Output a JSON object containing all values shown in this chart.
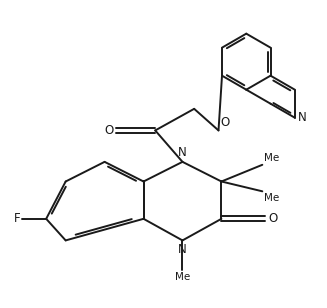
{
  "background": "#ffffff",
  "line_color": "#1a1a1a",
  "line_width": 1.4,
  "font_size": 8.5,
  "fig_width": 3.27,
  "fig_height": 3.08,
  "dpi": 100,
  "xlim": [
    0,
    10
  ],
  "ylim": [
    0,
    9.5
  ]
}
